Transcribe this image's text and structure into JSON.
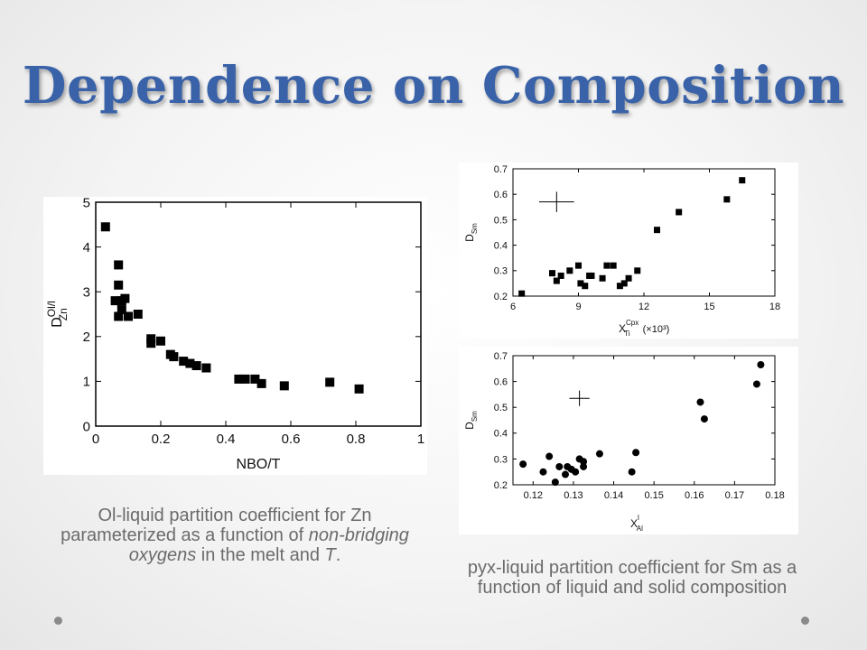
{
  "slide": {
    "title": "Dependence on Composition",
    "caption_left": {
      "part1": "Ol-liquid partition coefficient for Zn parameterized as a function of ",
      "italic1": "non-bridging oxygens",
      "part2": " in the melt and ",
      "italic2": "T",
      "part3": "."
    },
    "caption_right": "pyx-liquid partition coefficient for Sm as a function of liquid and solid composition"
  },
  "chart_data": [
    {
      "type": "scatter",
      "title": "",
      "xlabel": "NBO/T",
      "ylabel": {
        "main": "D",
        "sup": "Ol/l",
        "sub": "Zn"
      },
      "xlim": [
        0,
        1
      ],
      "ylim": [
        0,
        5
      ],
      "xticks": [
        "0",
        "0.2",
        "0.4",
        "0.6",
        "0.8",
        "1"
      ],
      "xtick_values": [
        0,
        0.2,
        0.4,
        0.6,
        0.8,
        1
      ],
      "yticks": [
        "0",
        "1",
        "2",
        "3",
        "4",
        "5"
      ],
      "ytick_values": [
        0,
        1,
        2,
        3,
        4,
        5
      ],
      "marker": "square",
      "x": [
        0.03,
        0.07,
        0.07,
        0.06,
        0.08,
        0.09,
        0.08,
        0.07,
        0.1,
        0.13,
        0.17,
        0.17,
        0.2,
        0.23,
        0.24,
        0.27,
        0.29,
        0.31,
        0.34,
        0.44,
        0.46,
        0.49,
        0.51,
        0.58,
        0.72,
        0.81
      ],
      "y": [
        4.45,
        3.6,
        3.15,
        2.8,
        2.8,
        2.85,
        2.6,
        2.45,
        2.45,
        2.5,
        1.95,
        1.85,
        1.9,
        1.6,
        1.55,
        1.45,
        1.4,
        1.35,
        1.3,
        1.05,
        1.05,
        1.05,
        0.95,
        0.9,
        0.98,
        0.83
      ]
    },
    {
      "type": "scatter",
      "title": "",
      "xlabel": {
        "main": "X",
        "sup": "Cpx",
        "sub": "Ti",
        "suffix": "(×10³)"
      },
      "ylabel": {
        "main": "D",
        "sub": "Sm"
      },
      "xlim": [
        6,
        18
      ],
      "ylim": [
        0.2,
        0.7
      ],
      "xticks": [
        "6",
        "9",
        "12",
        "15",
        "18"
      ],
      "xtick_values": [
        6,
        9,
        12,
        15,
        18
      ],
      "yticks": [
        "0.2",
        "0.3",
        "0.4",
        "0.5",
        "0.6",
        "0.7"
      ],
      "ytick_values": [
        0.2,
        0.3,
        0.4,
        0.5,
        0.6,
        0.7
      ],
      "marker": "square",
      "x": [
        6.4,
        7.8,
        8.2,
        8.0,
        8.6,
        9.0,
        9.1,
        9.3,
        9.5,
        9.6,
        10.1,
        10.3,
        10.6,
        10.9,
        11.1,
        11.3,
        11.7,
        12.6,
        13.6,
        15.8,
        16.5
      ],
      "y": [
        0.21,
        0.29,
        0.28,
        0.26,
        0.3,
        0.32,
        0.25,
        0.24,
        0.28,
        0.28,
        0.27,
        0.32,
        0.32,
        0.24,
        0.25,
        0.27,
        0.3,
        0.46,
        0.53,
        0.58,
        0.655
      ],
      "error_cross": {
        "x": 8.0,
        "y": 0.57,
        "dx": 0.8,
        "dy": 0.04
      }
    },
    {
      "type": "scatter",
      "title": "",
      "xlabel": {
        "main": "X",
        "sup": "l",
        "sub": "Al"
      },
      "ylabel": {
        "main": "D",
        "sub": "Sm"
      },
      "xlim": [
        0.115,
        0.18
      ],
      "ylim": [
        0.2,
        0.7
      ],
      "xticks": [
        "0.12",
        "0.13",
        "0.14",
        "0.15",
        "0.16",
        "0.17",
        "0.18"
      ],
      "xtick_values": [
        0.12,
        0.13,
        0.14,
        0.15,
        0.16,
        0.17,
        0.18
      ],
      "yticks": [
        "0.2",
        "0.3",
        "0.4",
        "0.5",
        "0.6",
        "0.7"
      ],
      "ytick_values": [
        0.2,
        0.3,
        0.4,
        0.5,
        0.6,
        0.7
      ],
      "marker": "circle",
      "x": [
        0.1175,
        0.1225,
        0.124,
        0.1255,
        0.1265,
        0.128,
        0.1285,
        0.1295,
        0.1305,
        0.1315,
        0.1325,
        0.1325,
        0.1365,
        0.1445,
        0.1455,
        0.1615,
        0.1625,
        0.1755,
        0.1765
      ],
      "y": [
        0.28,
        0.25,
        0.31,
        0.21,
        0.27,
        0.24,
        0.27,
        0.26,
        0.25,
        0.3,
        0.27,
        0.29,
        0.32,
        0.25,
        0.325,
        0.52,
        0.455,
        0.59,
        0.665
      ],
      "error_cross": {
        "x": 0.1315,
        "y": 0.535,
        "dx": 0.0025,
        "dy": 0.03
      }
    }
  ],
  "colors": {
    "title": "#3a62a8",
    "caption": "#6b6b6b",
    "marker": "#000000"
  }
}
